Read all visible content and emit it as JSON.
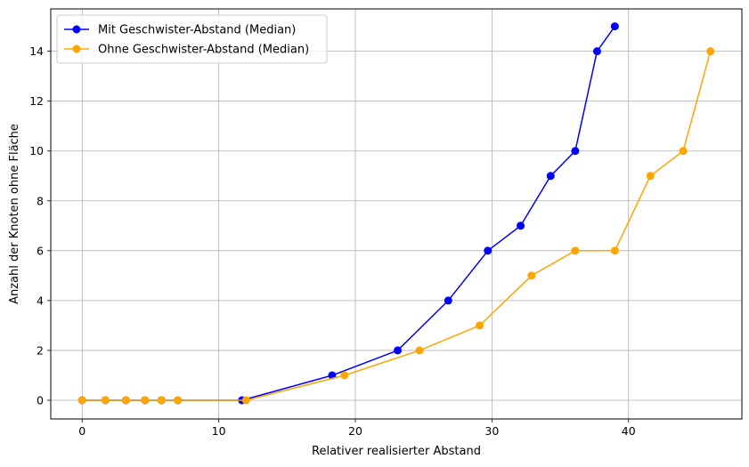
{
  "chart_data": {
    "type": "line",
    "xlabel": "Relativer realisierter Abstand",
    "ylabel": "Anzahl der Knoten ohne Fläche",
    "xlim": [
      -2.3,
      48.3
    ],
    "ylim": [
      -0.75,
      15.7
    ],
    "xticks": [
      0,
      10,
      20,
      30,
      40
    ],
    "yticks": [
      0,
      2,
      4,
      6,
      8,
      10,
      12,
      14
    ],
    "grid": true,
    "legend_position": "upper-left",
    "series": [
      {
        "name": "Mit Geschwister-Abstand (Median)",
        "color": "#0000ff",
        "marker": "circle",
        "x": [
          0,
          1.7,
          3.2,
          4.6,
          5.8,
          7.0,
          11.7,
          18.3,
          23.1,
          26.8,
          29.7,
          32.1,
          34.3,
          36.1,
          37.7,
          39.0
        ],
        "y": [
          0,
          0,
          0,
          0,
          0,
          0,
          0,
          1,
          2,
          4,
          6,
          7,
          9,
          10,
          14,
          15
        ]
      },
      {
        "name": "Ohne Geschwister-Abstand (Median)",
        "color": "#ffa500",
        "marker": "circle",
        "x": [
          0,
          1.7,
          3.2,
          4.6,
          5.8,
          7.0,
          12.0,
          19.2,
          24.7,
          29.1,
          32.9,
          36.1,
          39.0,
          41.6,
          44.0,
          46.0
        ],
        "y": [
          0,
          0,
          0,
          0,
          0,
          0,
          0,
          1,
          2,
          3,
          5,
          6,
          6,
          9,
          10,
          14
        ]
      }
    ]
  }
}
